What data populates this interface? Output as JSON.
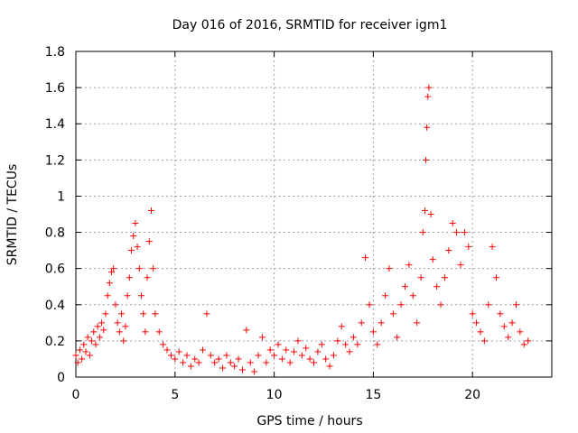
{
  "chart_data": {
    "type": "scatter",
    "title": "Day 016 of 2016, SRMTID for receiver igm1",
    "xlabel": "GPS time / hours",
    "ylabel": "SRMTID / TECUs",
    "xlim": [
      0,
      24
    ],
    "ylim": [
      0,
      1.8
    ],
    "xticks": [
      0,
      5,
      10,
      15,
      20
    ],
    "yticks": [
      0,
      0.2,
      0.4,
      0.6,
      0.8,
      1,
      1.2,
      1.4,
      1.6,
      1.8
    ],
    "xtick_labels": [
      "0",
      "5",
      "10",
      "15",
      "20"
    ],
    "ytick_labels": [
      "0",
      "0.2",
      "0.4",
      "0.6",
      "0.8",
      "1",
      "1.2",
      "1.4",
      "1.6",
      "1.8"
    ],
    "grid": true,
    "marker": "+",
    "series": [
      {
        "name": "SRMTID",
        "color": "#ff0000",
        "points": [
          [
            0.0,
            0.12
          ],
          [
            0.1,
            0.08
          ],
          [
            0.2,
            0.15
          ],
          [
            0.3,
            0.1
          ],
          [
            0.4,
            0.18
          ],
          [
            0.5,
            0.14
          ],
          [
            0.6,
            0.22
          ],
          [
            0.7,
            0.12
          ],
          [
            0.8,
            0.2
          ],
          [
            0.9,
            0.25
          ],
          [
            1.0,
            0.18
          ],
          [
            1.1,
            0.28
          ],
          [
            1.2,
            0.22
          ],
          [
            1.3,
            0.3
          ],
          [
            1.4,
            0.26
          ],
          [
            1.5,
            0.35
          ],
          [
            1.6,
            0.45
          ],
          [
            1.7,
            0.52
          ],
          [
            1.8,
            0.58
          ],
          [
            1.9,
            0.6
          ],
          [
            2.0,
            0.4
          ],
          [
            2.1,
            0.3
          ],
          [
            2.2,
            0.25
          ],
          [
            2.3,
            0.35
          ],
          [
            2.4,
            0.2
          ],
          [
            2.5,
            0.28
          ],
          [
            2.6,
            0.45
          ],
          [
            2.7,
            0.55
          ],
          [
            2.8,
            0.7
          ],
          [
            2.9,
            0.78
          ],
          [
            3.0,
            0.85
          ],
          [
            3.1,
            0.72
          ],
          [
            3.2,
            0.6
          ],
          [
            3.3,
            0.45
          ],
          [
            3.4,
            0.35
          ],
          [
            3.5,
            0.25
          ],
          [
            3.6,
            0.55
          ],
          [
            3.7,
            0.75
          ],
          [
            3.8,
            0.92
          ],
          [
            3.9,
            0.6
          ],
          [
            4.0,
            0.35
          ],
          [
            4.2,
            0.25
          ],
          [
            4.4,
            0.18
          ],
          [
            4.6,
            0.15
          ],
          [
            4.8,
            0.12
          ],
          [
            5.0,
            0.1
          ],
          [
            5.2,
            0.14
          ],
          [
            5.4,
            0.08
          ],
          [
            5.6,
            0.12
          ],
          [
            5.8,
            0.06
          ],
          [
            6.0,
            0.1
          ],
          [
            6.2,
            0.08
          ],
          [
            6.4,
            0.15
          ],
          [
            6.6,
            0.35
          ],
          [
            6.8,
            0.12
          ],
          [
            7.0,
            0.08
          ],
          [
            7.2,
            0.1
          ],
          [
            7.4,
            0.05
          ],
          [
            7.6,
            0.12
          ],
          [
            7.8,
            0.08
          ],
          [
            8.0,
            0.06
          ],
          [
            8.2,
            0.1
          ],
          [
            8.4,
            0.04
          ],
          [
            8.6,
            0.26
          ],
          [
            8.8,
            0.08
          ],
          [
            9.0,
            0.03
          ],
          [
            9.2,
            0.12
          ],
          [
            9.4,
            0.22
          ],
          [
            9.6,
            0.08
          ],
          [
            9.8,
            0.15
          ],
          [
            10.0,
            0.12
          ],
          [
            10.2,
            0.18
          ],
          [
            10.4,
            0.1
          ],
          [
            10.6,
            0.15
          ],
          [
            10.8,
            0.08
          ],
          [
            11.0,
            0.14
          ],
          [
            11.2,
            0.2
          ],
          [
            11.4,
            0.12
          ],
          [
            11.6,
            0.16
          ],
          [
            11.8,
            0.1
          ],
          [
            12.0,
            0.08
          ],
          [
            12.2,
            0.14
          ],
          [
            12.4,
            0.18
          ],
          [
            12.6,
            0.1
          ],
          [
            12.8,
            0.06
          ],
          [
            13.0,
            0.12
          ],
          [
            13.2,
            0.2
          ],
          [
            13.4,
            0.28
          ],
          [
            13.6,
            0.18
          ],
          [
            13.8,
            0.14
          ],
          [
            14.0,
            0.22
          ],
          [
            14.2,
            0.18
          ],
          [
            14.4,
            0.3
          ],
          [
            14.6,
            0.66
          ],
          [
            14.8,
            0.4
          ],
          [
            15.0,
            0.25
          ],
          [
            15.2,
            0.18
          ],
          [
            15.4,
            0.3
          ],
          [
            15.6,
            0.45
          ],
          [
            15.8,
            0.6
          ],
          [
            16.0,
            0.35
          ],
          [
            16.2,
            0.22
          ],
          [
            16.4,
            0.4
          ],
          [
            16.6,
            0.5
          ],
          [
            16.8,
            0.62
          ],
          [
            17.0,
            0.45
          ],
          [
            17.2,
            0.3
          ],
          [
            17.4,
            0.55
          ],
          [
            17.5,
            0.8
          ],
          [
            17.6,
            0.92
          ],
          [
            17.65,
            1.2
          ],
          [
            17.7,
            1.38
          ],
          [
            17.75,
            1.55
          ],
          [
            17.8,
            1.6
          ],
          [
            17.9,
            0.9
          ],
          [
            18.0,
            0.65
          ],
          [
            18.2,
            0.5
          ],
          [
            18.4,
            0.4
          ],
          [
            18.6,
            0.55
          ],
          [
            18.8,
            0.7
          ],
          [
            19.0,
            0.85
          ],
          [
            19.2,
            0.8
          ],
          [
            19.4,
            0.62
          ],
          [
            19.6,
            0.8
          ],
          [
            19.8,
            0.72
          ],
          [
            20.0,
            0.35
          ],
          [
            20.2,
            0.3
          ],
          [
            20.4,
            0.25
          ],
          [
            20.6,
            0.2
          ],
          [
            20.8,
            0.4
          ],
          [
            21.0,
            0.72
          ],
          [
            21.2,
            0.55
          ],
          [
            21.4,
            0.35
          ],
          [
            21.6,
            0.28
          ],
          [
            21.8,
            0.22
          ],
          [
            22.0,
            0.3
          ],
          [
            22.2,
            0.4
          ],
          [
            22.4,
            0.25
          ],
          [
            22.6,
            0.18
          ],
          [
            22.8,
            0.2
          ]
        ]
      }
    ]
  }
}
